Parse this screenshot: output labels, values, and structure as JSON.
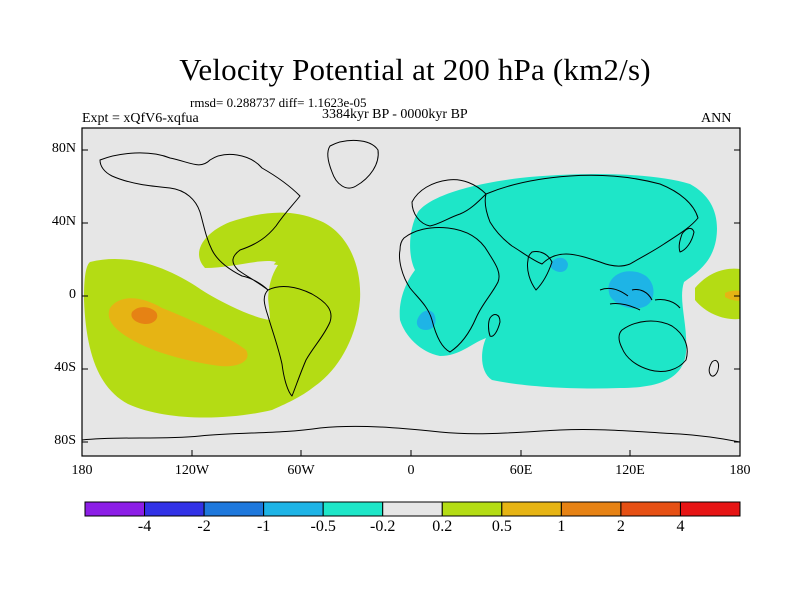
{
  "figure": {
    "title": "Velocity Potential at 200 hPa (km2/s)",
    "stats": "rmsd= 0.288737 diff= 1.1623e-05",
    "period": "3384kyr BP - 0000kyr BP",
    "experiment": "Expt = xQfV6-xqfua",
    "season": "ANN"
  },
  "axes": {
    "lat_ticks": [
      "80N",
      "40N",
      "0",
      "40S",
      "80S"
    ],
    "lon_ticks": [
      "180",
      "120W",
      "60W",
      "0",
      "60E",
      "120E",
      "180"
    ]
  },
  "colorbar": {
    "labels": [
      "-4",
      "-2",
      "-1",
      "-0.5",
      "-0.2",
      "0.2",
      "0.5",
      "1",
      "2",
      "4"
    ],
    "colors": [
      "#8c1ee6",
      "#3232e6",
      "#1e78dc",
      "#1eb4e6",
      "#1ee6c8",
      "#e6e6e6",
      "#b4dc14",
      "#e6b414",
      "#e68214",
      "#e65014",
      "#e61414"
    ]
  },
  "map": {
    "ocean_color": "#e6e6e6",
    "coast_color": "#000000"
  }
}
